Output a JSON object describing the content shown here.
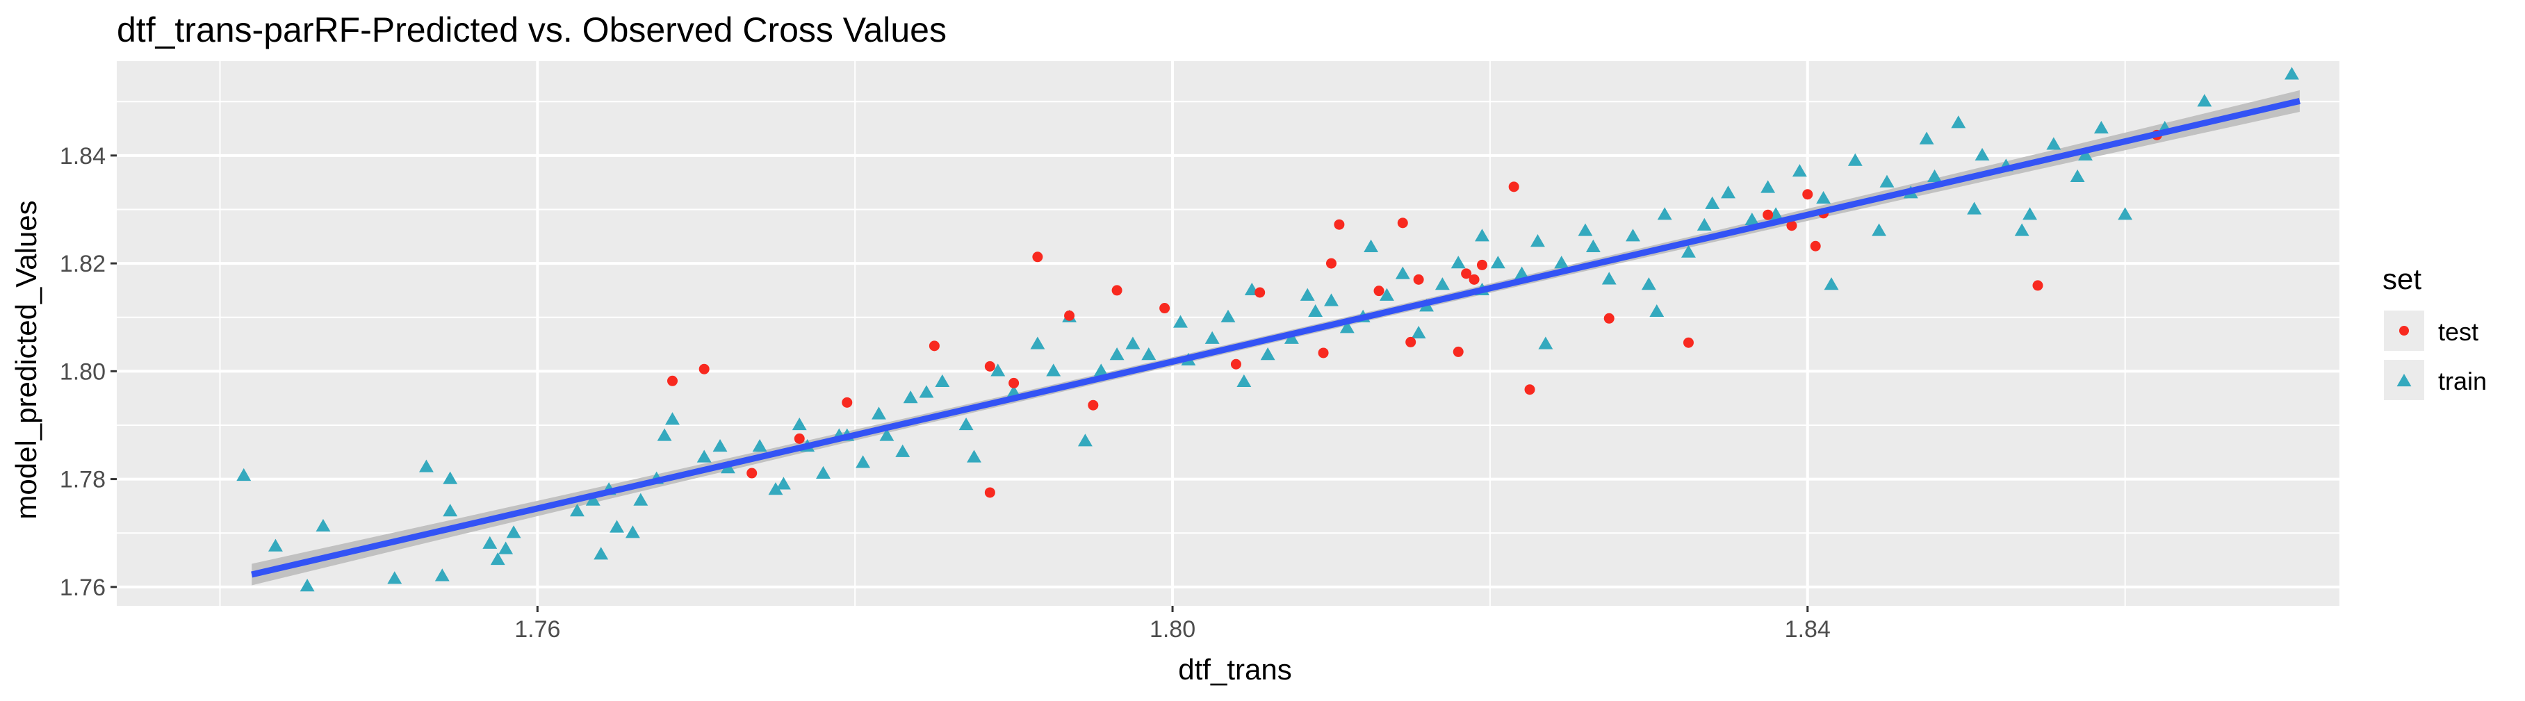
{
  "chart_data": {
    "type": "scatter",
    "title": "dtf_trans-parRF-Predicted vs. Observed Cross Values",
    "xlabel": "dtf_trans",
    "ylabel": "model_predicted_Values",
    "xlim": [
      1.7335,
      1.8735
    ],
    "ylim": [
      1.7565,
      1.8575
    ],
    "x_ticks": [
      1.76,
      1.8,
      1.84
    ],
    "x_tick_labels": [
      "1.76",
      "1.80",
      "1.84"
    ],
    "y_ticks": [
      1.76,
      1.78,
      1.8,
      1.82,
      1.84
    ],
    "y_tick_labels": [
      "1.76",
      "1.78",
      "1.80",
      "1.82",
      "1.84"
    ],
    "grid": true,
    "legend": {
      "title": "set",
      "position": "right",
      "entries": [
        {
          "label": "test",
          "shape": "circle",
          "color": "#F8291F"
        },
        {
          "label": "train",
          "shape": "triangle",
          "color": "#34A9BE"
        }
      ]
    },
    "fit_line": {
      "method": "lm",
      "color": "#3353F5",
      "band_color": "#BDBDBD",
      "x": [
        1.742,
        1.871
      ],
      "y": [
        1.7623,
        1.8501
      ]
    },
    "series": [
      {
        "name": "test",
        "shape": "circle",
        "color": "#F8291F",
        "x": [
          1.7685,
          1.7705,
          1.7735,
          1.7765,
          1.7795,
          1.785,
          1.7885,
          1.7885,
          1.79,
          1.7915,
          1.7935,
          1.795,
          1.7965,
          1.7995,
          1.804,
          1.8055,
          1.8095,
          1.81,
          1.8105,
          1.813,
          1.8145,
          1.815,
          1.8155,
          1.818,
          1.8185,
          1.819,
          1.8195,
          1.8215,
          1.8225,
          1.8275,
          1.8325,
          1.8375,
          1.839,
          1.84,
          1.8405,
          1.841,
          1.8545,
          1.862
        ],
        "y": [
          1.7982,
          1.8004,
          1.7811,
          1.7875,
          1.7942,
          1.8047,
          1.8009,
          1.7775,
          1.7978,
          1.8212,
          1.8103,
          1.7937,
          1.815,
          1.8117,
          1.8013,
          1.8146,
          1.8034,
          1.82,
          1.8272,
          1.8149,
          1.8275,
          1.8054,
          1.817,
          1.8036,
          1.8181,
          1.817,
          1.8197,
          1.8342,
          1.7966,
          1.8098,
          1.8053,
          1.829,
          1.827,
          1.8328,
          1.8232,
          1.8293,
          1.8159,
          1.8438
        ]
      },
      {
        "name": "train",
        "shape": "triangle",
        "color": "#34A9BE",
        "x": [
          1.7415,
          1.7435,
          1.7455,
          1.7465,
          1.751,
          1.753,
          1.754,
          1.7545,
          1.757,
          1.7575,
          1.758,
          1.7585,
          1.7635,
          1.764,
          1.7645,
          1.765,
          1.766,
          1.7665,
          1.7675,
          1.768,
          1.7705,
          1.772,
          1.774,
          1.775,
          1.7765,
          1.777,
          1.778,
          1.779,
          1.7795,
          1.7815,
          1.782,
          1.783,
          1.7835,
          1.7855,
          1.787,
          1.789,
          1.79,
          1.7915,
          1.7925,
          1.7935,
          1.7955,
          1.7965,
          1.7985,
          1.801,
          1.8025,
          1.8035,
          1.805,
          1.806,
          1.8075,
          1.809,
          1.81,
          1.811,
          1.812,
          1.8135,
          1.8145,
          1.816,
          1.817,
          1.818,
          1.8195,
          1.8205,
          1.822,
          1.823,
          1.8245,
          1.826,
          1.8275,
          1.829,
          1.83,
          1.831,
          1.8325,
          1.834,
          1.835,
          1.8365,
          1.838,
          1.8395,
          1.841,
          1.843,
          1.845,
          1.8465,
          1.848,
          1.8495,
          1.851,
          1.8525,
          1.854,
          1.8555,
          1.857,
          1.8585,
          1.86,
          1.8625,
          1.865,
          1.8705,
          1.7545,
          1.7625,
          1.7685,
          1.7715,
          1.7755,
          1.7805,
          1.7845,
          1.7875,
          1.7945,
          1.7975,
          1.8005,
          1.8045,
          1.8085,
          1.8125,
          1.8155,
          1.8195,
          1.8235,
          1.8265,
          1.8305,
          1.8335,
          1.8375,
          1.8415,
          1.8445,
          1.8475,
          1.8505,
          1.8535,
          1.8575
        ],
        "y": [
          1.7806,
          1.7675,
          1.7601,
          1.7712,
          1.7615,
          1.7822,
          1.762,
          1.78,
          1.768,
          1.765,
          1.767,
          1.77,
          1.776,
          1.766,
          1.778,
          1.771,
          1.77,
          1.776,
          1.78,
          1.788,
          1.784,
          1.782,
          1.786,
          1.778,
          1.79,
          1.786,
          1.781,
          1.788,
          1.788,
          1.792,
          1.788,
          1.785,
          1.795,
          1.798,
          1.79,
          1.8,
          1.796,
          1.805,
          1.8,
          1.81,
          1.8,
          1.803,
          1.803,
          1.802,
          1.806,
          1.81,
          1.815,
          1.803,
          1.806,
          1.811,
          1.813,
          1.808,
          1.81,
          1.814,
          1.818,
          1.812,
          1.816,
          1.82,
          1.815,
          1.82,
          1.818,
          1.824,
          1.82,
          1.826,
          1.817,
          1.825,
          1.816,
          1.829,
          1.822,
          1.831,
          1.833,
          1.828,
          1.829,
          1.837,
          1.832,
          1.839,
          1.835,
          1.833,
          1.836,
          1.846,
          1.84,
          1.838,
          1.829,
          1.842,
          1.836,
          1.845,
          1.829,
          1.845,
          1.85,
          1.855,
          1.774,
          1.774,
          1.791,
          1.786,
          1.779,
          1.783,
          1.796,
          1.784,
          1.787,
          1.805,
          1.809,
          1.798,
          1.814,
          1.823,
          1.807,
          1.825,
          1.805,
          1.823,
          1.811,
          1.827,
          1.834,
          1.816,
          1.826,
          1.843,
          1.83,
          1.826,
          1.84
        ]
      }
    ]
  }
}
